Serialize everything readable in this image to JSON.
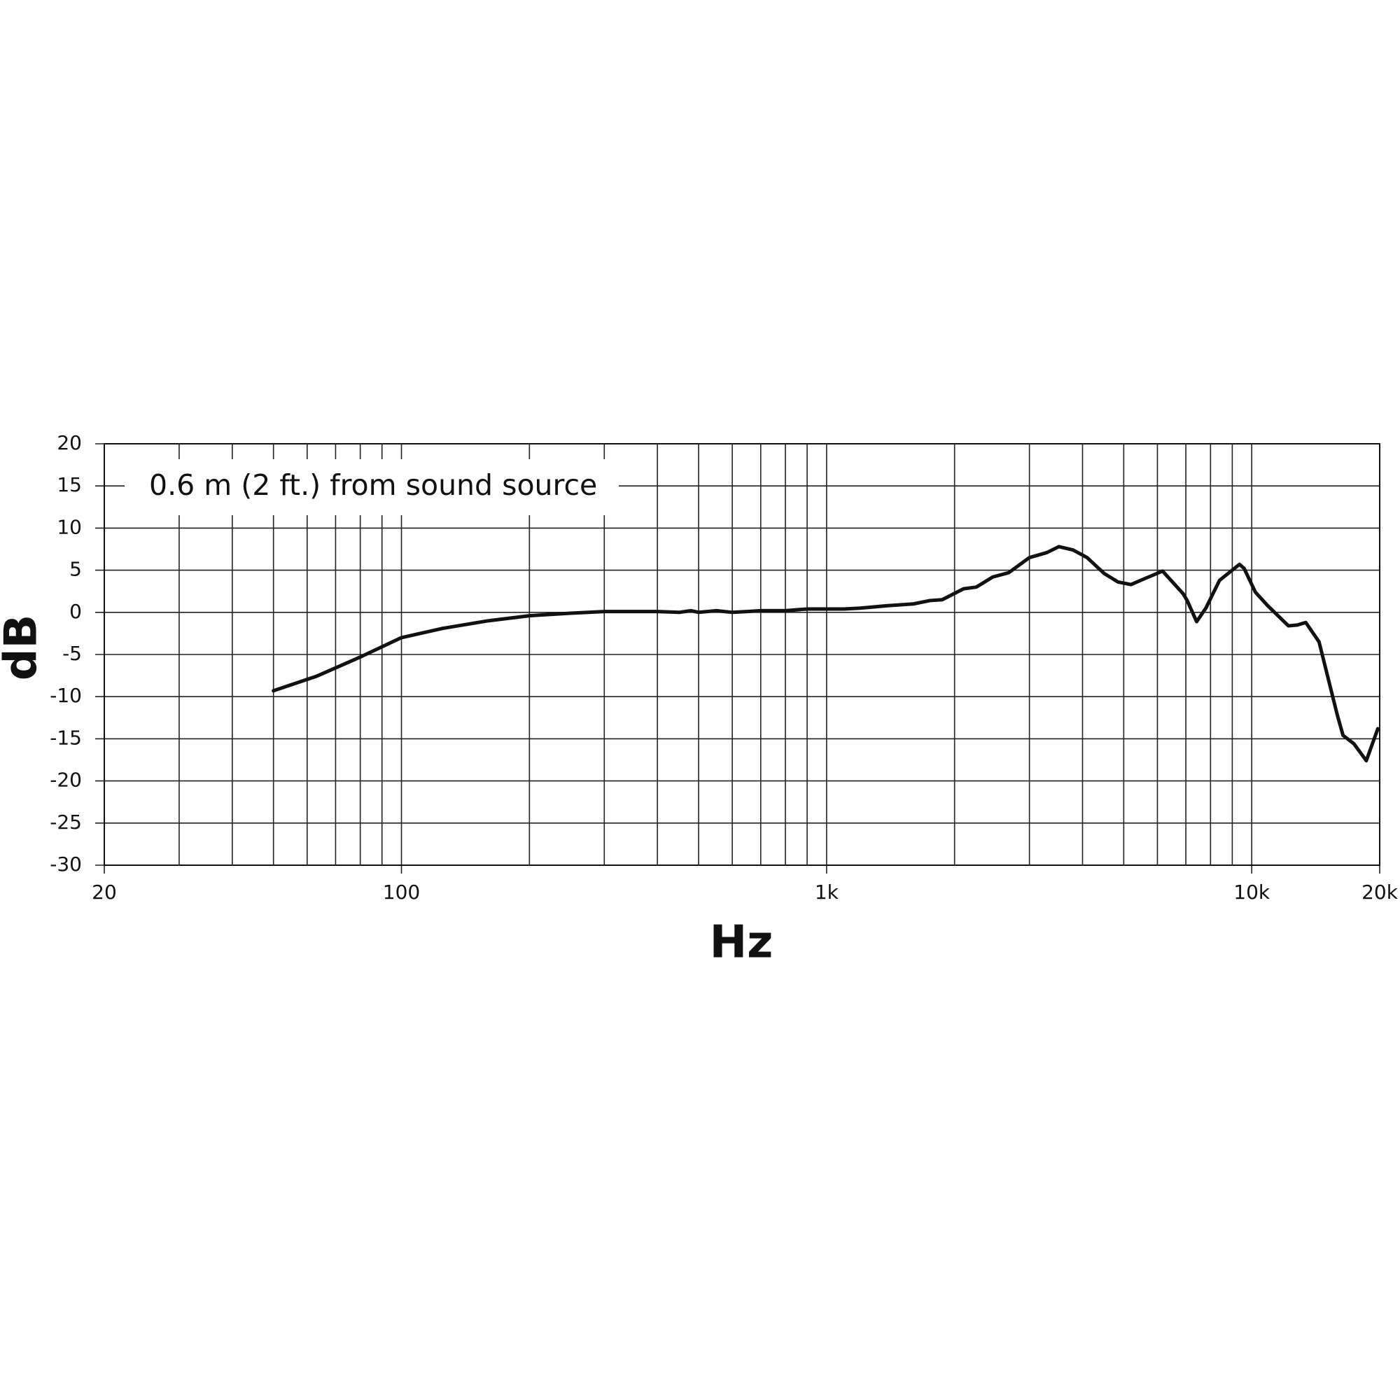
{
  "chart_data": {
    "type": "line",
    "annotation": "0.6 m (2 ft.) from sound source",
    "x_label": "Hz",
    "y_label": "dB",
    "xscale": "log",
    "grid": true,
    "color": "#111111",
    "xlim": [
      20,
      20000
    ],
    "ylim": [
      -30,
      20
    ],
    "xticks": [
      20,
      100,
      {
        "value": 1000,
        "label": "1k"
      },
      {
        "value": 10000,
        "label": "10k"
      },
      {
        "value": 20000,
        "label": "20k"
      }
    ],
    "xminor": [
      30,
      40,
      50,
      60,
      70,
      80,
      90,
      200,
      300,
      400,
      500,
      600,
      700,
      800,
      900,
      2000,
      3000,
      4000,
      5000,
      6000,
      7000,
      8000,
      9000
    ],
    "yticks": [
      -30,
      -25,
      -20,
      -15,
      -10,
      -5,
      0,
      5,
      10,
      15,
      20
    ],
    "x": [
      50,
      63,
      80,
      100,
      125,
      160,
      200,
      250,
      300,
      400,
      450,
      480,
      500,
      550,
      600,
      650,
      700,
      800,
      900,
      1000,
      1100,
      1200,
      1400,
      1600,
      1750,
      1870,
      2100,
      2250,
      2460,
      2680,
      3000,
      3300,
      3520,
      3800,
      4100,
      4500,
      4850,
      5200,
      5600,
      6170,
      6900,
      7050,
      7420,
      7800,
      8400,
      9360,
      9600,
      10200,
      10900,
      12200,
      12800,
      13400,
      14400,
      15900,
      16400,
      17400,
      18600,
      19800
    ],
    "values": [
      -9.3,
      -7.6,
      -5.3,
      -3.0,
      -1.9,
      -1.0,
      -0.4,
      -0.1,
      0.1,
      0.1,
      0.0,
      0.2,
      0.0,
      0.2,
      0.0,
      0.1,
      0.2,
      0.2,
      0.4,
      0.4,
      0.4,
      0.5,
      0.8,
      1.0,
      1.4,
      1.5,
      2.8,
      3.0,
      4.2,
      4.7,
      6.5,
      7.1,
      7.8,
      7.4,
      6.5,
      4.6,
      3.6,
      3.3,
      4.0,
      4.9,
      2.2,
      1.4,
      -1.1,
      0.5,
      3.8,
      5.7,
      5.2,
      2.4,
      0.8,
      -1.6,
      -1.5,
      -1.2,
      -3.5,
      -12.2,
      -14.6,
      -15.6,
      -17.6,
      -13.8
    ]
  }
}
